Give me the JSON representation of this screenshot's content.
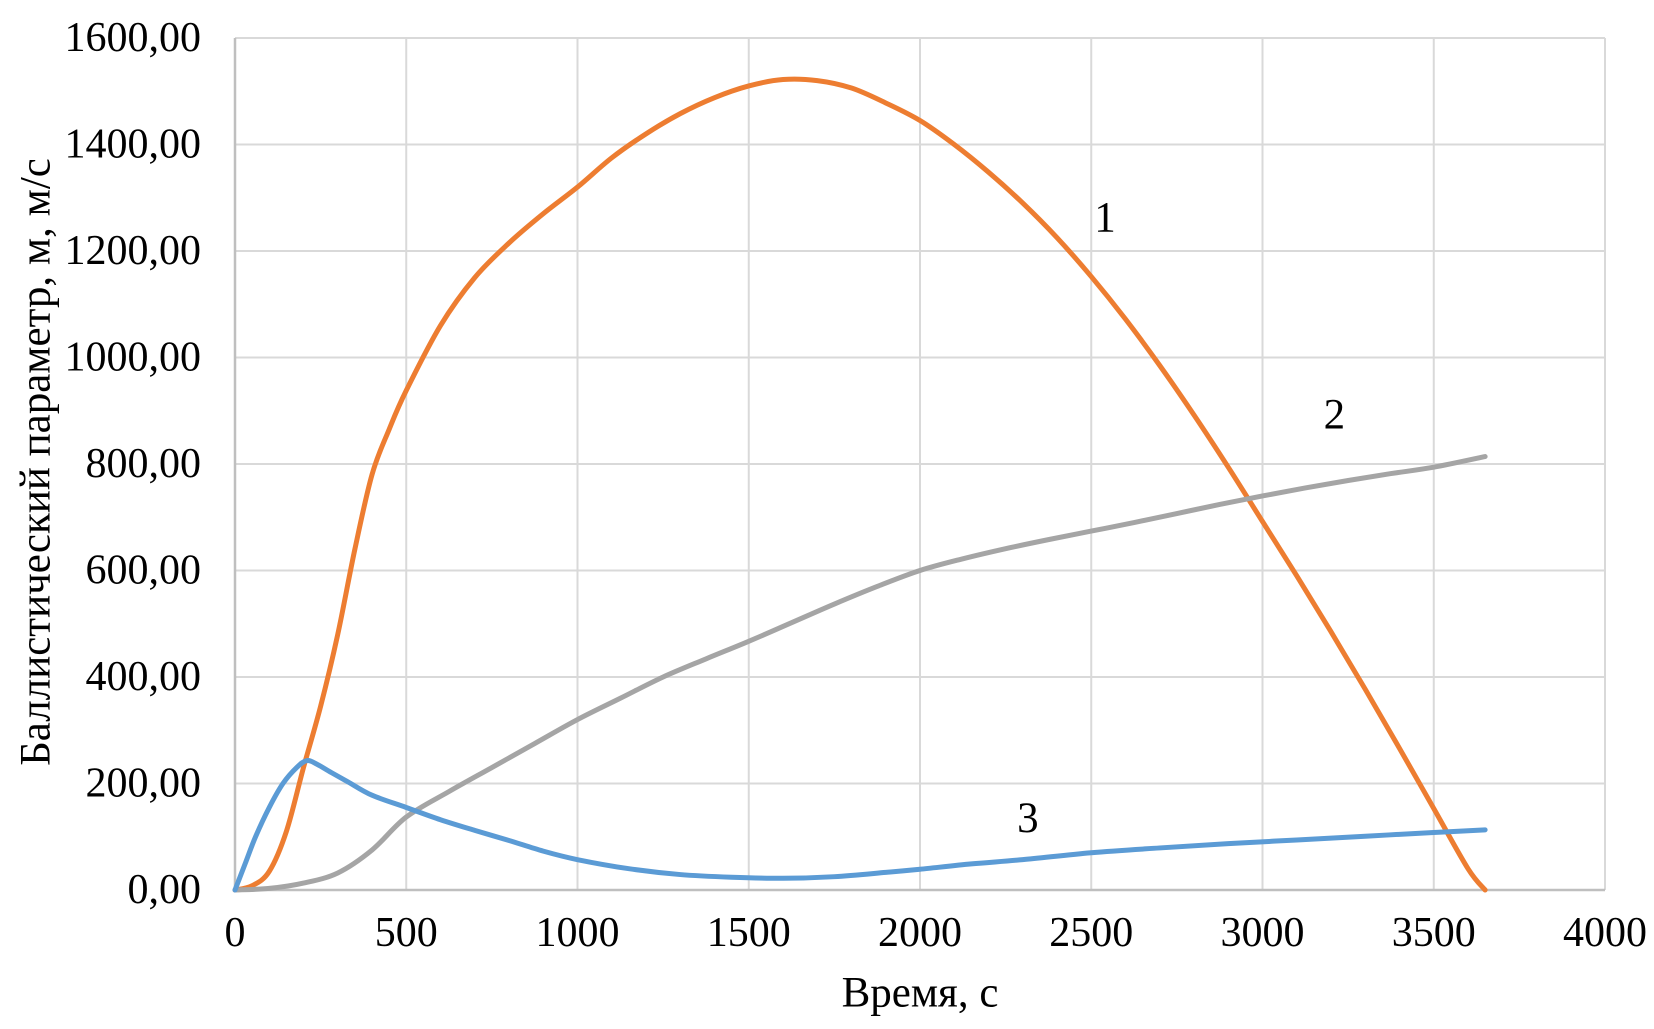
{
  "chart_data": {
    "type": "line",
    "title": "",
    "xlabel": "Время, с",
    "ylabel": "Баллистический параметр, м, м/с",
    "xlim": [
      0,
      4000
    ],
    "ylim": [
      0,
      1600
    ],
    "grid": true,
    "legend_position": "none (curves labeled inline with numbers)",
    "x_tick_values": [
      0,
      500,
      1000,
      1500,
      2000,
      2500,
      3000,
      3500,
      4000
    ],
    "x_tick_labels": [
      "0",
      "500",
      "1000",
      "1500",
      "2000",
      "2500",
      "3000",
      "3500",
      "4000"
    ],
    "y_tick_values": [
      0,
      200,
      400,
      600,
      800,
      1000,
      1200,
      1400,
      1600
    ],
    "y_tick_labels": [
      "0,00",
      "200,00",
      "400,00",
      "600,00",
      "800,00",
      "1000,00",
      "1200,00",
      "1400,00",
      "1600,00"
    ],
    "colors": {
      "background": "#FFFFFF",
      "gridline": "#D9D9D9",
      "axis_line": "#BFBFBF",
      "text": "#000000",
      "series_1": "#ED7D31",
      "series_2": "#A5A5A5",
      "series_3": "#5B9BD5"
    },
    "series": [
      {
        "name": "1",
        "color": "#ED7D31",
        "label": "1",
        "label_pos": {
          "x": 2540,
          "y": 1262
        },
        "x": [
          0,
          50,
          100,
          150,
          200,
          250,
          300,
          350,
          400,
          450,
          500,
          600,
          700,
          800,
          900,
          1000,
          1100,
          1200,
          1300,
          1400,
          1500,
          1600,
          1700,
          1800,
          1900,
          2000,
          2100,
          2200,
          2300,
          2400,
          2500,
          2600,
          2700,
          2800,
          2900,
          3000,
          3100,
          3200,
          3300,
          3400,
          3500,
          3600,
          3650
        ],
        "y": [
          0,
          8,
          35,
          110,
          230,
          345,
          480,
          640,
          780,
          865,
          938,
          1060,
          1150,
          1215,
          1270,
          1320,
          1375,
          1420,
          1458,
          1488,
          1510,
          1522,
          1520,
          1506,
          1478,
          1445,
          1400,
          1348,
          1290,
          1225,
          1152,
          1072,
          985,
          892,
          794,
          692,
          590,
          485,
          377,
          266,
          153,
          40,
          0
        ]
      },
      {
        "name": "2",
        "color": "#A5A5A5",
        "label": "2",
        "label_pos": {
          "x": 3210,
          "y": 892
        },
        "x": [
          0,
          100,
          200,
          300,
          400,
          500,
          625,
          750,
          875,
          1000,
          1125,
          1250,
          1375,
          1500,
          1625,
          1750,
          1875,
          2000,
          2125,
          2250,
          2375,
          2500,
          2625,
          2750,
          2875,
          3000,
          3125,
          3250,
          3375,
          3500,
          3650
        ],
        "y": [
          0,
          3,
          13,
          32,
          75,
          137,
          185,
          230,
          275,
          320,
          360,
          400,
          434,
          467,
          502,
          537,
          570,
          600,
          622,
          641,
          658,
          674,
          690,
          707,
          724,
          740,
          755,
          769,
          782,
          794,
          814
        ]
      },
      {
        "name": "3",
        "color": "#5B9BD5",
        "label": "3",
        "label_pos": {
          "x": 2315,
          "y": 134
        },
        "x": [
          0,
          30,
          60,
          100,
          140,
          180,
          210,
          240,
          280,
          330,
          400,
          500,
          600,
          700,
          800,
          900,
          1000,
          1150,
          1300,
          1450,
          1600,
          1750,
          1900,
          2000,
          2150,
          2300,
          2500,
          2700,
          2900,
          3100,
          3300,
          3500,
          3650
        ],
        "y": [
          0,
          50,
          100,
          155,
          200,
          230,
          243,
          236,
          221,
          203,
          178,
          155,
          132,
          112,
          93,
          73,
          57,
          40,
          29,
          24,
          22,
          25,
          33,
          39,
          49,
          57,
          70,
          79,
          87,
          94,
          101,
          108,
          113
        ]
      }
    ]
  }
}
